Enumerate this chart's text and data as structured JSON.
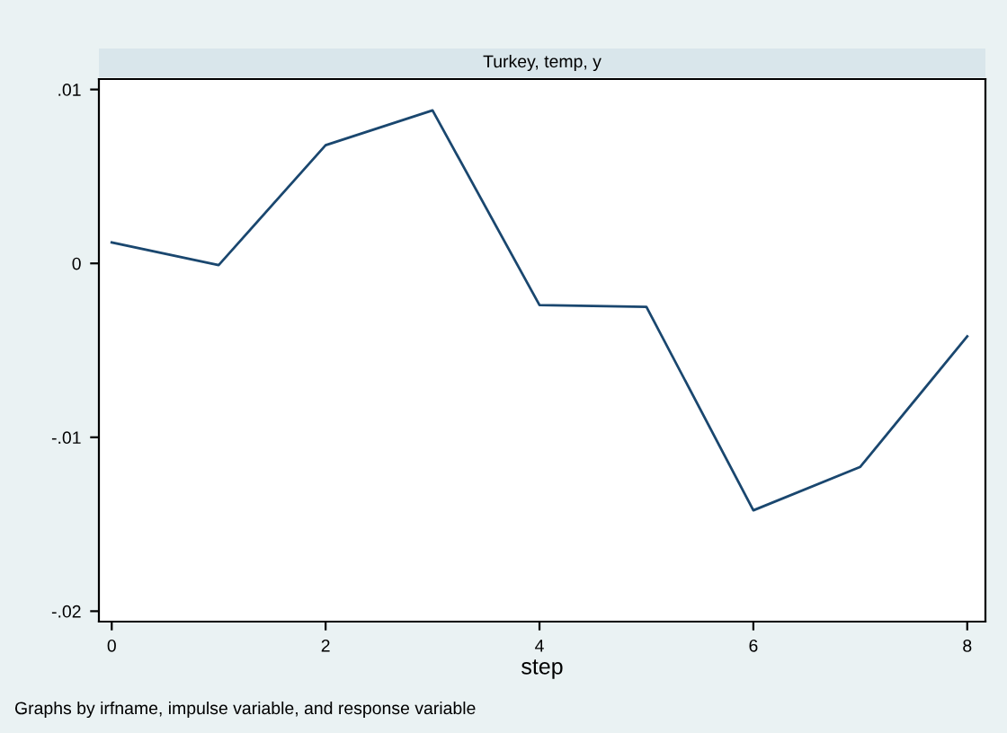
{
  "chart_data": {
    "type": "line",
    "title": "Turkey, temp, y",
    "xlabel": "step",
    "x": [
      0,
      1,
      2,
      3,
      4,
      5,
      6,
      7,
      8
    ],
    "series": [
      {
        "color": "#1a476f",
        "values": [
          0.0012,
          -0.0001,
          0.0068,
          0.0088,
          -0.0024,
          -0.0025,
          -0.0142,
          -0.0117,
          -0.0042
        ]
      }
    ],
    "xlim": [
      -0.12,
      8.17
    ],
    "xticks": [
      0,
      2,
      4,
      6,
      8
    ],
    "ylim": [
      -0.0206,
      0.0106
    ],
    "yticks": [
      {
        "value": 0.01,
        "label": ".01"
      },
      {
        "value": 0,
        "label": "0"
      },
      {
        "value": -0.01,
        "label": "-.01"
      },
      {
        "value": -0.02,
        "label": "-.02"
      }
    ],
    "grid": false,
    "legend": false,
    "annotations": [
      "Graphs by irfname, impulse variable, and response variable"
    ]
  }
}
